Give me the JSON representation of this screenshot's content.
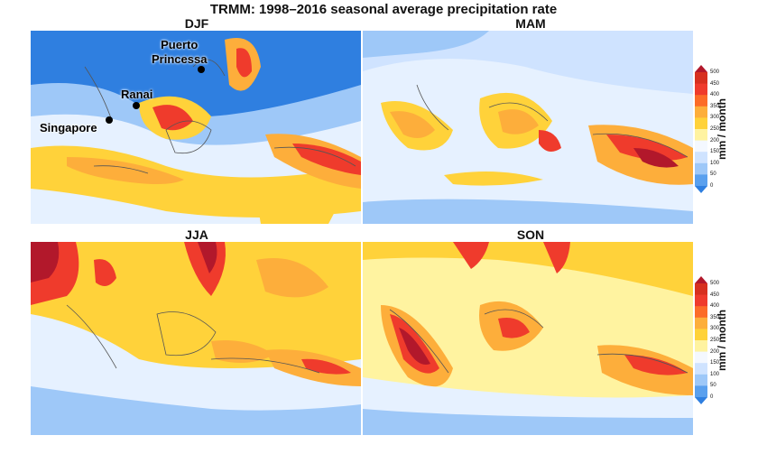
{
  "title": "TRMM: 1998–2016 seasonal average precipitation rate",
  "panels": [
    {
      "id": "djf",
      "label": "DJF"
    },
    {
      "id": "mam",
      "label": "MAM"
    },
    {
      "id": "jja",
      "label": "JJA"
    },
    {
      "id": "son",
      "label": "SON"
    }
  ],
  "places": [
    {
      "name": "Puerto\nPrincessa"
    },
    {
      "name": "Ranai"
    },
    {
      "name": "Singapore"
    }
  ],
  "colorbar": {
    "label": "mm / month",
    "ticks": [
      "500",
      "450",
      "400",
      "350",
      "300",
      "250",
      "200",
      "150",
      "100",
      "50",
      "0"
    ],
    "colors": [
      "#b2182b",
      "#d7301f",
      "#ef3b2c",
      "#fc6c28",
      "#fdae3b",
      "#ffd23a",
      "#fff3a0",
      "#f4f8ff",
      "#cfe3ff",
      "#9ec8f8",
      "#5aa0ee",
      "#2f7fe0"
    ]
  },
  "map_colors": {
    "ocean_dry": "#2f7fe0",
    "light_blue": "#9ec8f8",
    "pale": "#e6f1ff",
    "yellow": "#ffd23a",
    "orange": "#fdae3b",
    "red": "#ef3b2c",
    "dark_red": "#b2182b",
    "coast": "#555555"
  }
}
